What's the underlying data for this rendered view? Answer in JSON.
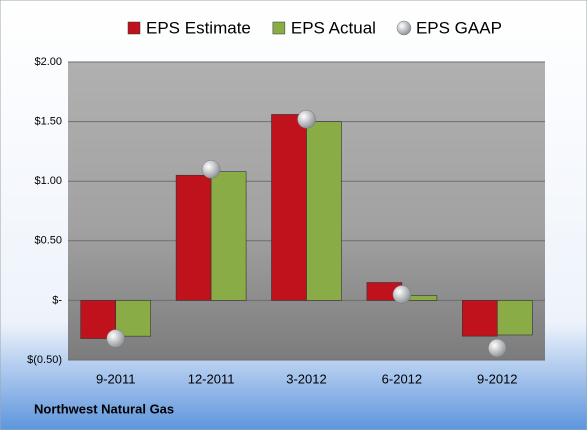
{
  "chart_data": {
    "type": "bar",
    "title": "Northwest Natural Gas",
    "categories": [
      "9-2011",
      "12-2011",
      "3-2012",
      "6-2012",
      "9-2012"
    ],
    "series": [
      {
        "name": "EPS Estimate",
        "color": "#c0121c",
        "values": [
          -0.32,
          1.05,
          1.56,
          0.15,
          -0.3
        ]
      },
      {
        "name": "EPS Actual",
        "color": "#8aac46",
        "values": [
          -0.3,
          1.08,
          1.5,
          0.04,
          -0.29
        ]
      },
      {
        "name": "EPS GAAP",
        "color": "#b4b8bc",
        "values": [
          -0.32,
          1.1,
          1.52,
          0.05,
          -0.4
        ],
        "marker": "circle"
      }
    ],
    "ylim": [
      -0.5,
      2.0
    ],
    "yticks": [
      {
        "value": -0.5,
        "label": "$(0.50)"
      },
      {
        "value": 0,
        "label": "$-"
      },
      {
        "value": 0.5,
        "label": "$0.50"
      },
      {
        "value": 1.0,
        "label": "$1.00"
      },
      {
        "value": 1.5,
        "label": "$1.50"
      },
      {
        "value": 2.0,
        "label": "$2.00"
      }
    ],
    "grid": true,
    "legend": "top"
  }
}
